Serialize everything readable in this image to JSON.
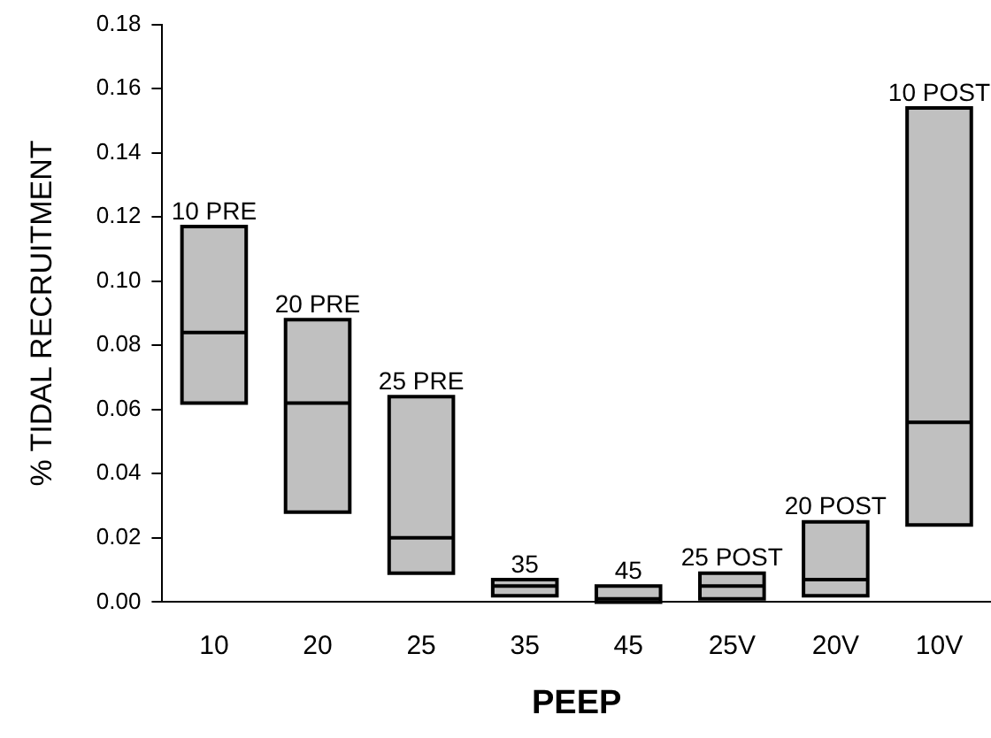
{
  "chart_data": {
    "type": "box",
    "xlabel": "PEEP",
    "ylabel": "% TIDAL RECRUITMENT",
    "categories": [
      "10",
      "20",
      "25",
      "35",
      "45",
      "25V",
      "20V",
      "10V"
    ],
    "color": "#c0c0c0",
    "boxes": [
      {
        "low": 0.062,
        "q1": 0.062,
        "median": 0.084,
        "q3": 0.117,
        "high": 0.117
      },
      {
        "low": 0.028,
        "q1": 0.028,
        "median": 0.062,
        "q3": 0.088,
        "high": 0.088
      },
      {
        "low": 0.009,
        "q1": 0.009,
        "median": 0.02,
        "q3": 0.064,
        "high": 0.064
      },
      {
        "low": 0.002,
        "q1": 0.002,
        "median": 0.005,
        "q3": 0.007,
        "high": 0.007
      },
      {
        "low": 0.0,
        "q1": 0.0,
        "median": 0.001,
        "q3": 0.005,
        "high": 0.005
      },
      {
        "low": 0.001,
        "q1": 0.001,
        "median": 0.005,
        "q3": 0.009,
        "high": 0.009
      },
      {
        "low": 0.002,
        "q1": 0.002,
        "median": 0.007,
        "q3": 0.025,
        "high": 0.025
      },
      {
        "low": 0.024,
        "q1": 0.024,
        "median": 0.056,
        "q3": 0.154,
        "high": 0.154
      }
    ],
    "ylim": [
      0,
      0.18
    ],
    "yticks": [
      {
        "value": 0,
        "label": "0.00"
      },
      {
        "value": 0.02,
        "label": "0.02"
      },
      {
        "value": 0.04,
        "label": "0.04"
      },
      {
        "value": 0.06,
        "label": "0.06"
      },
      {
        "value": 0.08,
        "label": "0.08"
      },
      {
        "value": 0.1,
        "label": "0.10"
      },
      {
        "value": 0.12,
        "label": "0.12"
      },
      {
        "value": 0.14,
        "label": "0.14"
      },
      {
        "value": 0.16,
        "label": "0.16"
      },
      {
        "value": 0.18,
        "label": "0.18"
      }
    ],
    "grid": false,
    "legend": false,
    "annotations": [
      {
        "text": "10 PRE",
        "x": "10",
        "y": 0.117
      },
      {
        "text": "20 PRE",
        "x": "20",
        "y": 0.088
      },
      {
        "text": "25 PRE",
        "x": "25",
        "y": 0.064
      },
      {
        "text": "35",
        "x": "35",
        "y": 0.007
      },
      {
        "text": "45",
        "x": "45",
        "y": 0.005
      },
      {
        "text": "25 POST",
        "x": "25V",
        "y": 0.009
      },
      {
        "text": "20 POST",
        "x": "20V",
        "y": 0.025
      },
      {
        "text": "10 POST",
        "x": "10V",
        "y": 0.154
      }
    ]
  }
}
